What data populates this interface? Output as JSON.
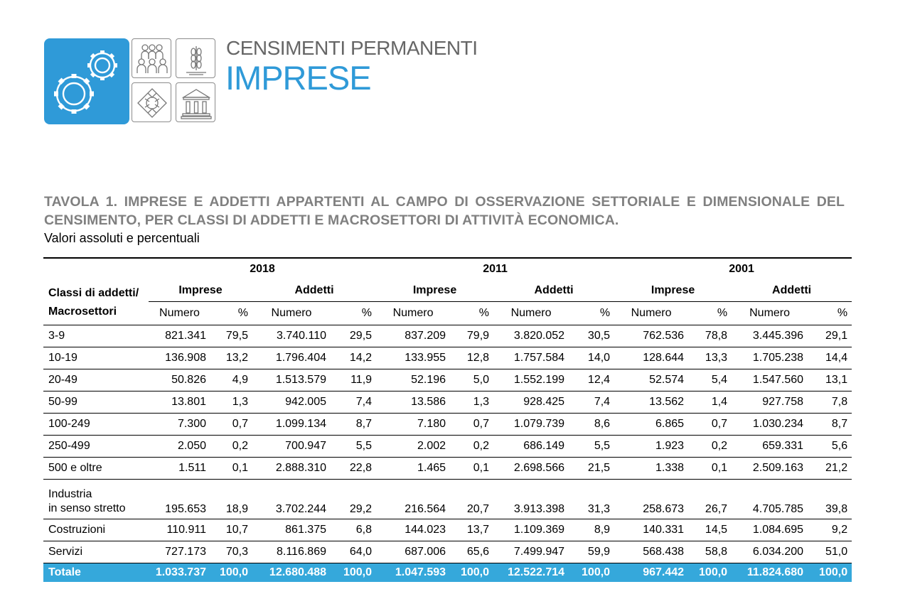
{
  "logo": {
    "line1": "CENSIMENTI PERMANENTI",
    "line2": "IMPRESE",
    "icons": [
      "gears-icon",
      "people-icon",
      "wheat-icon",
      "hands-icon",
      "building-icon"
    ],
    "accent_color": "#2f9ad8"
  },
  "title": "TAVOLA 1. IMPRESE E ADDETTI APPARTENTI AL CAMPO DI OSSERVAZIONE SETTORIALE E DIMENSIONALE DEL CENSIMENTO, PER CLASSI DI ADDETTI E MACROSETTORI DI ATTIVITÀ ECONOMICA.",
  "subtitle": "Valori assoluti e percentuali",
  "table": {
    "row_header_line1": "Classi di addetti/",
    "row_header_line2": "Macrosettori",
    "years": [
      "2018",
      "2011",
      "2001"
    ],
    "groups": [
      "Imprese",
      "Addetti",
      "Imprese",
      "Addetti",
      "Imprese",
      "Addetti"
    ],
    "subheaders": [
      "Numero",
      "%",
      "Numero",
      "%",
      "Numero",
      "%",
      "Numero",
      "%",
      "Numero",
      "%",
      "Numero",
      "%"
    ],
    "rows": [
      {
        "label": "3-9",
        "values": [
          "821.341",
          "79,5",
          "3.740.110",
          "29,5",
          "837.209",
          "79,9",
          "3.820.052",
          "30,5",
          "762.536",
          "78,8",
          "3.445.396",
          "29,1"
        ]
      },
      {
        "label": "10-19",
        "values": [
          "136.908",
          "13,2",
          "1.796.404",
          "14,2",
          "133.955",
          "12,8",
          "1.757.584",
          "14,0",
          "128.644",
          "13,3",
          "1.705.238",
          "14,4"
        ]
      },
      {
        "label": "20-49",
        "values": [
          "50.826",
          "4,9",
          "1.513.579",
          "11,9",
          "52.196",
          "5,0",
          "1.552.199",
          "12,4",
          "52.574",
          "5,4",
          "1.547.560",
          "13,1"
        ]
      },
      {
        "label": "50-99",
        "values": [
          "13.801",
          "1,3",
          "942.005",
          "7,4",
          "13.586",
          "1,3",
          "928.425",
          "7,4",
          "13.562",
          "1,4",
          "927.758",
          "7,8"
        ]
      },
      {
        "label": "100-249",
        "values": [
          "7.300",
          "0,7",
          "1.099.134",
          "8,7",
          "7.180",
          "0,7",
          "1.079.739",
          "8,6",
          "6.865",
          "0,7",
          "1.030.234",
          "8,7"
        ]
      },
      {
        "label": "250-499",
        "values": [
          "2.050",
          "0,2",
          "700.947",
          "5,5",
          "2.002",
          "0,2",
          "686.149",
          "5,5",
          "1.923",
          "0,2",
          "659.331",
          "5,6"
        ]
      },
      {
        "label": "500 e oltre",
        "values": [
          "1.511",
          "0,1",
          "2.888.310",
          "22,8",
          "1.465",
          "0,1",
          "2.698.566",
          "21,5",
          "1.338",
          "0,1",
          "2.509.163",
          "21,2"
        ]
      },
      {
        "label": "Industria",
        "label2": "in senso stretto",
        "values": [
          "195.653",
          "18,9",
          "3.702.244",
          "29,2",
          "216.564",
          "20,7",
          "3.913.398",
          "31,3",
          "258.673",
          "26,7",
          "4.705.785",
          "39,8"
        ]
      },
      {
        "label": "Costruzioni",
        "values": [
          "110.911",
          "10,7",
          "861.375",
          "6,8",
          "144.023",
          "13,7",
          "1.109.369",
          "8,9",
          "140.331",
          "14,5",
          "1.084.695",
          "9,2"
        ]
      },
      {
        "label": "Servizi",
        "values": [
          "727.173",
          "70,3",
          "8.116.869",
          "64,0",
          "687.006",
          "65,6",
          "7.499.947",
          "59,9",
          "568.438",
          "58,8",
          "6.034.200",
          "51,0"
        ]
      }
    ],
    "total": {
      "label": "Totale",
      "values": [
        "1.033.737",
        "100,0",
        "12.680.488",
        "100,0",
        "1.047.593",
        "100,0",
        "12.522.714",
        "100,0",
        "967.442",
        "100,0",
        "11.824.680",
        "100,0"
      ]
    },
    "total_color": "#35a8db"
  }
}
